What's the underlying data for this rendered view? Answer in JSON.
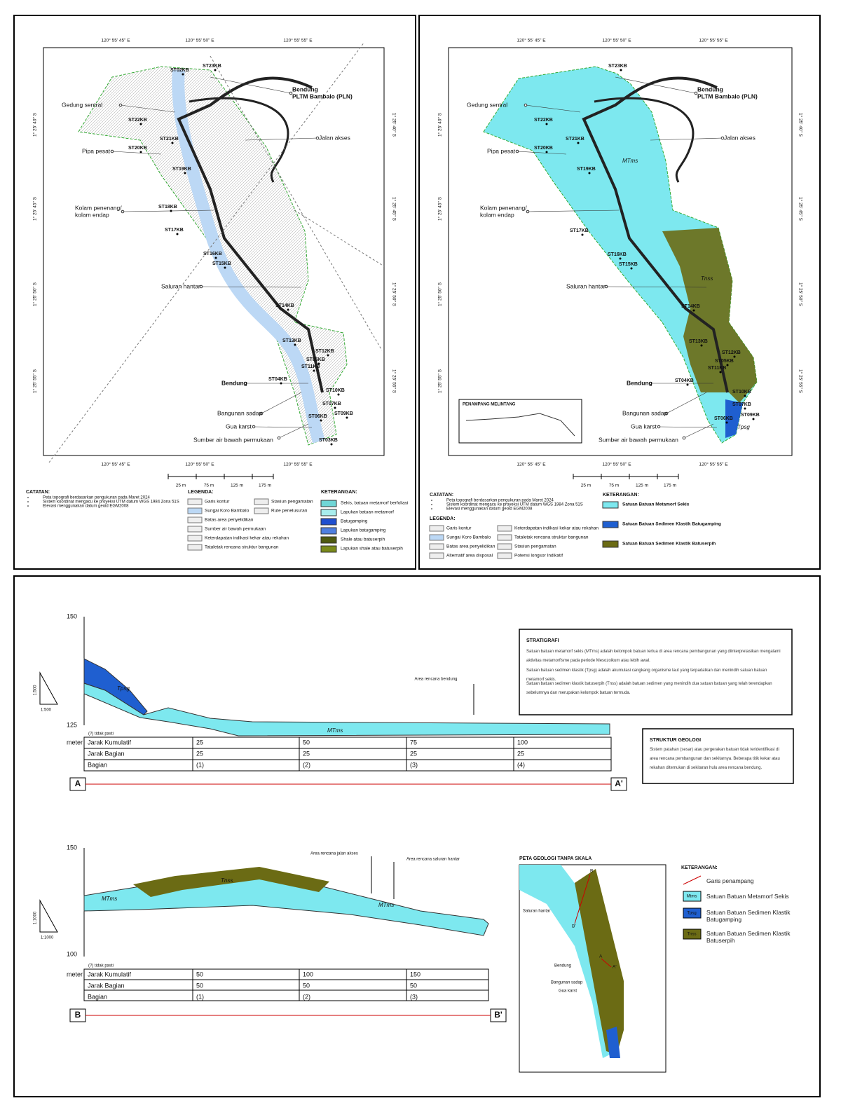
{
  "map_left": {
    "top_coords": [
      "120° 55' 45\" E",
      "120° 55' 50\" E",
      "120° 55' 55\" E"
    ],
    "side_coords": [
      "1° 25' 40\" S",
      "1° 25' 45\" S",
      "1° 25' 50\" S",
      "1° 25' 55\" S"
    ],
    "features": [
      "Bendung",
      "PLTM Bambalo (PLN)",
      "Gedung sentral",
      "Jalan akses",
      "Pipa pesat",
      "Kolam penenang/",
      "kolam endap",
      "Saluran hantar",
      "Bendung",
      "Bangunan sadap",
      "Gua karst",
      "Sumber air bawah permukaan"
    ],
    "stations": [
      "ST02KB",
      "ST23KB",
      "ST22KB",
      "ST21KB",
      "ST20KB",
      "ST19KB",
      "ST18KB",
      "ST17KB",
      "ST16KB",
      "ST15KB",
      "ST14KB",
      "ST13KB",
      "ST12KB",
      "ST05KB",
      "ST11KB",
      "ST04KB",
      "ST10KB",
      "ST07KB",
      "ST06KB",
      "ST09KB",
      "ST03KB"
    ],
    "scale": [
      "25 m",
      "75 m",
      "125 m",
      "175 m"
    ],
    "notes_title": "CATATAN:",
    "notes": [
      "Peta topografi berdasarkan pengukuran pada Maret 2024",
      "Sistem koordinat mengacu ke proyeksi UTM datum WGS 1984 Zona 51S",
      "Elevasi menggunakan datum geoid EGM2008"
    ],
    "legend_title": "LEGENDA:",
    "legend": [
      "Garis kontur",
      "Sungai Koro Bambalo",
      "Batas area penyelidikan",
      "Sumber air bawah permukaan",
      "Keterdapatan indikasi kekar atau rekahan",
      "Tataletak rencana struktur bangunan",
      "Stasiun pengamatan",
      "Rute penelusuran"
    ],
    "keterangan_title": "KETERANGAN:",
    "keterangan": [
      "Sekis, batuan metamorf berfoliasi",
      "Lapukan batuan metamorf",
      "Batugamping",
      "Lapukan batugamping",
      "Shale atau batuserpih",
      "Lapukan shale atau batuserpih"
    ]
  },
  "map_right": {
    "top_coords": [
      "120° 55' 45\" E",
      "120° 55' 50\" E",
      "120° 55' 55\" E"
    ],
    "side_coords": [
      "1° 25' 40\" S",
      "1° 25' 45\" S",
      "1° 25' 50\" S",
      "1° 25' 55\" S"
    ],
    "features": [
      "Bendung",
      "PLTM Bambalo (PLN)",
      "Gedung sentral",
      "Jalan akses",
      "Pipa pesat",
      "Kolam penenang/",
      "kolam endap",
      "Saluran hantar",
      "Bendung",
      "Bangunan sadap",
      "Gua karst",
      "Sumber air bawah permukaan"
    ],
    "stations": [
      "ST23KB",
      "ST22KB",
      "ST21KB",
      "ST20KB",
      "ST19KB",
      "ST17KB",
      "ST16KB",
      "ST15KB",
      "ST14KB",
      "ST13KB",
      "ST12KB",
      "ST05KB",
      "ST11KB",
      "ST04KB",
      "ST10KB",
      "ST07KB",
      "ST06KB",
      "ST09KB"
    ],
    "units": [
      "MTms",
      "Tnss",
      "Tpsg"
    ],
    "inset_title": "PENAMPANG MELINTANG",
    "scale": [
      "25 m",
      "75 m",
      "125 m",
      "175 m"
    ],
    "notes_title": "CATATAN:",
    "notes": [
      "Peta topografi berdasarkan pengukuran pada Maret 2024",
      "Sistem koordinat mengacu ke proyeksi UTM datum WGS 1984 Zona 51S",
      "Elevasi menggunakan datum geoid EGM2008"
    ],
    "legend_title": "LEGENDA:",
    "legend": [
      "Garis kontur",
      "Sungai Koro Bambalo",
      "Batas area penyelidikan",
      "Alternatif area disposal",
      "Keterdapatan indikasi kekar atau rekahan",
      "Tataletak rencana struktur bangunan",
      "Stasiun pengamatan",
      "Potensi longsor Indikatif"
    ],
    "keterangan_title": "KETERANGAN:",
    "keterangan": [
      "Satuan Batuan Metamorf Sekis",
      "Satuan Batuan Sedimen Klastik Batugamping",
      "Satuan Batuan Sedimen Klastik Batuserpih"
    ]
  },
  "section_a": {
    "ticks": [
      "150",
      "125"
    ],
    "unit": "meter",
    "scale": "1:500",
    "uncertain": "(?) tidak pasti",
    "annotation": "Area rencana bendung",
    "units": [
      "Tpsg",
      "MTms"
    ],
    "rows": [
      [
        "Jarak Kumulatif",
        "25",
        "50",
        "75",
        "100"
      ],
      [
        "Jarak Bagian",
        "25",
        "25",
        "25",
        "25"
      ],
      [
        "Bagian",
        "(1)",
        "(2)",
        "(3)",
        "(4)"
      ]
    ],
    "ends": [
      "A",
      "A'"
    ]
  },
  "section_b": {
    "ticks": [
      "150",
      "100"
    ],
    "unit": "meter",
    "scale": "1:1000",
    "uncertain": "(?) tidak pasti",
    "annotations": [
      "Area rencana jalan akses",
      "Area rencana saluran hantar"
    ],
    "units": [
      "MTms",
      "Tnss",
      "MTms"
    ],
    "rows": [
      [
        "Jarak Kumulatif",
        "50",
        "100",
        "150"
      ],
      [
        "Jarak Bagian",
        "50",
        "50",
        "50"
      ],
      [
        "Bagian",
        "(1)",
        "(2)",
        "(3)"
      ]
    ],
    "ends": [
      "B",
      "B'"
    ]
  },
  "stratigrafi": {
    "title": "STRATIGRAFI",
    "paragraphs": [
      "Satuan batuan metamorf sekis (MTms) adalah kelompok batuan tertua di area rencana pembangunan yang diinterpretasikan mengalami aktivitas metamorfisme pada periode Mesozoikum atau lebih awal.",
      "Satuan batuan sedimen klastik (Tpsg) adalah akumulasi cangkang organisme laut yang terpadatkan dan menindih satuan batuan metamorf sekis.",
      "Satuan batuan sedimen klastik batuserpih (Tnss) adalah batuan sedimen yang menindih dua satuan batuan yang telah terendapkan sebelumnya dan merupakan kelompok batuan termuda."
    ]
  },
  "struktur": {
    "title": "STRUKTUR GEOLOGI",
    "text": "Sistem patahan (sesar) atau pergerakan batuan tidak teridentifikasi di area rencana pembangunan dan sekitarnya. Beberapa titik kekar atau rekahan ditemukan di sekitaran hulu area rencana bendung."
  },
  "inset": {
    "title": "PETA GEOLOGI TANPA SKALA",
    "labels": [
      "Saluran hantar",
      "Bendung",
      "Bangunan sadap",
      "Gua karst",
      "B",
      "B'",
      "A",
      "A'"
    ]
  },
  "keterangan": {
    "title": "KETERANGAN:",
    "swatches": [
      "Mtms",
      "Tpsg",
      "Tnss"
    ],
    "items": [
      "Garis penampang",
      "Satuan Batuan Metamorf Sekis",
      "Satuan Batuan Sedimen Klastik Batugamping",
      "Satuan Batuan Sedimen Klastik Batuserpih"
    ]
  }
}
